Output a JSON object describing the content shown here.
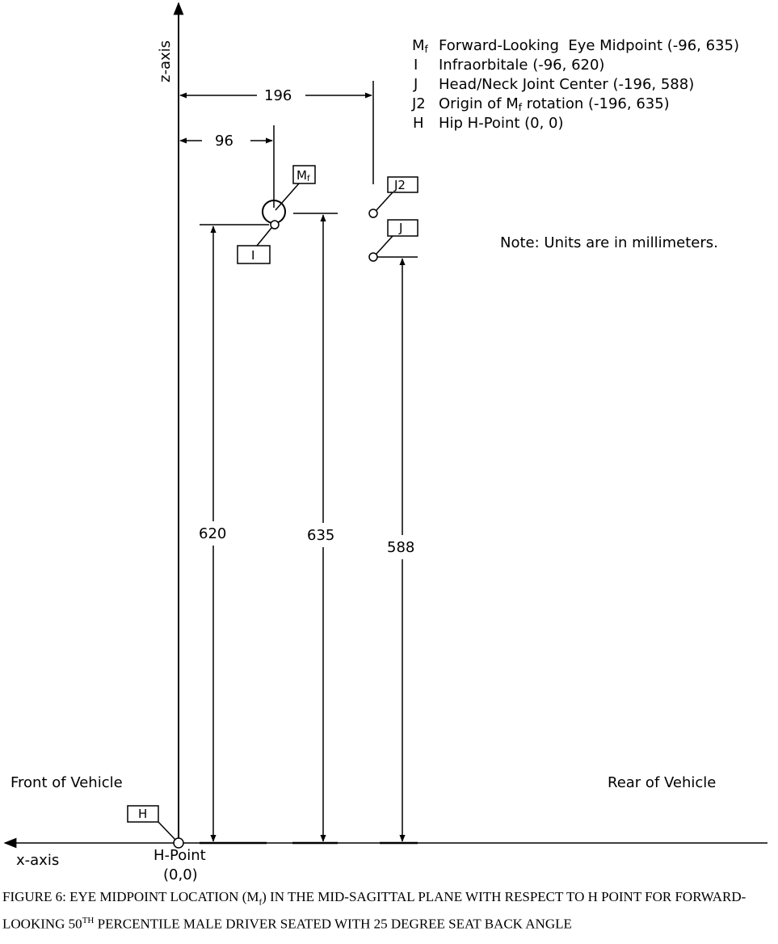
{
  "legend": [
    {
      "key": "M",
      "key_sub": "f",
      "text": "Forward-Looking  Eye Midpoint (-96, 635)"
    },
    {
      "key": "I",
      "text": "Infraorbitale (-96, 620)"
    },
    {
      "key": "J",
      "text": "Head/Neck Joint Center (-196, 588)"
    },
    {
      "key": "J2",
      "text_before": "Origin of M",
      "text_sub": "f",
      "text_after": " rotation (-196, 635)"
    },
    {
      "key": "H",
      "text": "Hip H-Point (0, 0)"
    }
  ],
  "note": "Note: Units are in millimeters.",
  "axes": {
    "z_label": "z-axis",
    "x_label": "x-axis"
  },
  "sides": {
    "front": "Front of Vehicle",
    "rear": "Rear of Vehicle"
  },
  "hpoint": {
    "label": "H-Point",
    "coords": "(0,0)"
  },
  "boxes": {
    "mf": "M",
    "mf_sub": "f",
    "i": "I",
    "j2": "J2",
    "j": "J",
    "h": "H"
  },
  "dimensions": {
    "d196": "196",
    "d96": "96",
    "d620": "620",
    "d635": "635",
    "d588": "588"
  },
  "caption": {
    "part1": "FIGURE 6: EYE MIDPOINT LOCATION (M",
    "sub": "f",
    "part2": ") IN THE MID-SAGITTAL PLANE WITH RESPECT TO H POINT FOR FORWARD-LOOKING 50",
    "sup": "TH",
    "part3": " PERCENTILE MALE DRIVER SEATED WITH 25 DEGREE SEAT BACK ANGLE"
  }
}
